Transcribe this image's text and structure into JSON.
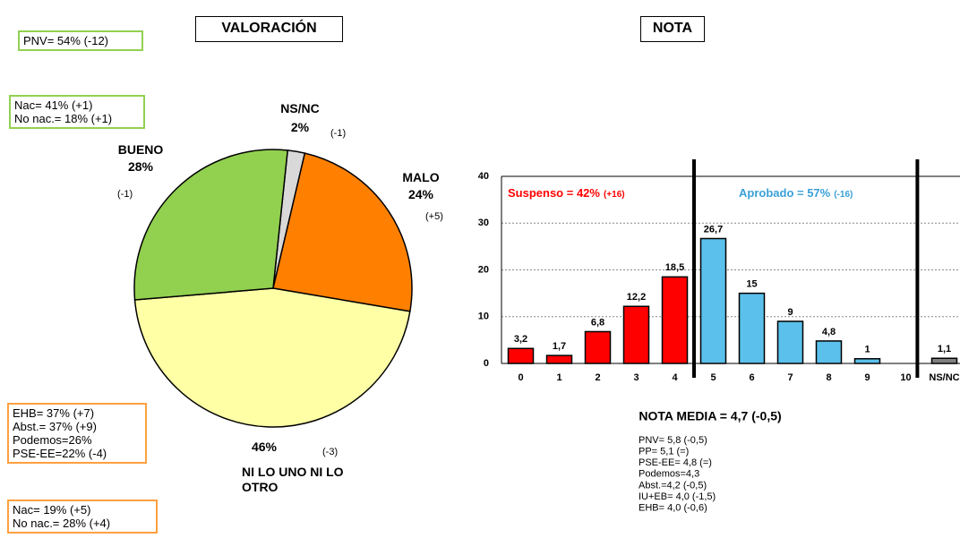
{
  "chart_data": [
    {
      "type": "pie",
      "title": "VALORACIÓN",
      "categories": [
        "NS/NC",
        "MALO",
        "NI LO UNO NI LO OTRO",
        "BUENO"
      ],
      "values": [
        2,
        24,
        46,
        28
      ],
      "value_labels": [
        "2%",
        "24%",
        "46%",
        "28%"
      ],
      "changes": [
        "(-1)",
        "(+5)",
        "(-3)",
        "(-1)"
      ],
      "colors": [
        "#d9d9d9",
        "#ff8000",
        "#ffffa6",
        "#92d050"
      ],
      "notes": [
        [
          "PNV= 54% (-12)"
        ],
        [
          "Nac= 41% (+1)",
          "No nac.= 18% (+1)"
        ],
        [
          "EHB= 37% (+7)",
          "Abst.= 37% (+9)",
          "Podemos=26%",
          "PSE-EE=22% (-4)"
        ],
        [
          "Nac= 19% (+5)",
          "No nac.= 28% (+4)"
        ]
      ],
      "note_colors": [
        "green",
        "green",
        "orange",
        "orange"
      ]
    },
    {
      "type": "bar",
      "title": "NOTA",
      "categories": [
        "0",
        "1",
        "2",
        "3",
        "4",
        "5",
        "6",
        "7",
        "8",
        "9",
        "10",
        "NS/NC"
      ],
      "values": [
        3.2,
        1.7,
        6.8,
        12.2,
        18.5,
        26.7,
        15,
        9,
        4.8,
        1,
        null,
        1.1
      ],
      "value_labels": [
        "3,2",
        "1,7",
        "6,8",
        "12,2",
        "18,5",
        "26,7",
        "15",
        "9",
        "4,8",
        "1",
        null,
        "1,1"
      ],
      "colors": [
        "#ff0000",
        "#ff0000",
        "#ff0000",
        "#ff0000",
        "#ff0000",
        "#5bc0eb",
        "#5bc0eb",
        "#5bc0eb",
        "#5bc0eb",
        "#5bc0eb",
        "#5bc0eb",
        "#808080"
      ],
      "ylim": [
        0,
        40
      ],
      "yticks": [
        0,
        10,
        20,
        30,
        40
      ],
      "grid": true,
      "groups": [
        {
          "label": "Suspenso = 42%",
          "change": "(+16)",
          "color": "#ff0000"
        },
        {
          "label": "Aprobado = 57%",
          "change": "(-16)",
          "color": "#3aa0d8"
        }
      ],
      "mean_label": "NOTA MEDIA = 4,7 (-0,5)",
      "party_notes": [
        "PNV= 5,8 (-0,5)",
        "PP= 5,1 (=)",
        "PSE-EE= 4,8 (=)",
        "Podemos=4,3",
        "Abst.=4,2 (-0,5)",
        "IU+EB= 4,0 (-1,5)",
        "EHB= 4,0 (-0,6)"
      ]
    }
  ]
}
